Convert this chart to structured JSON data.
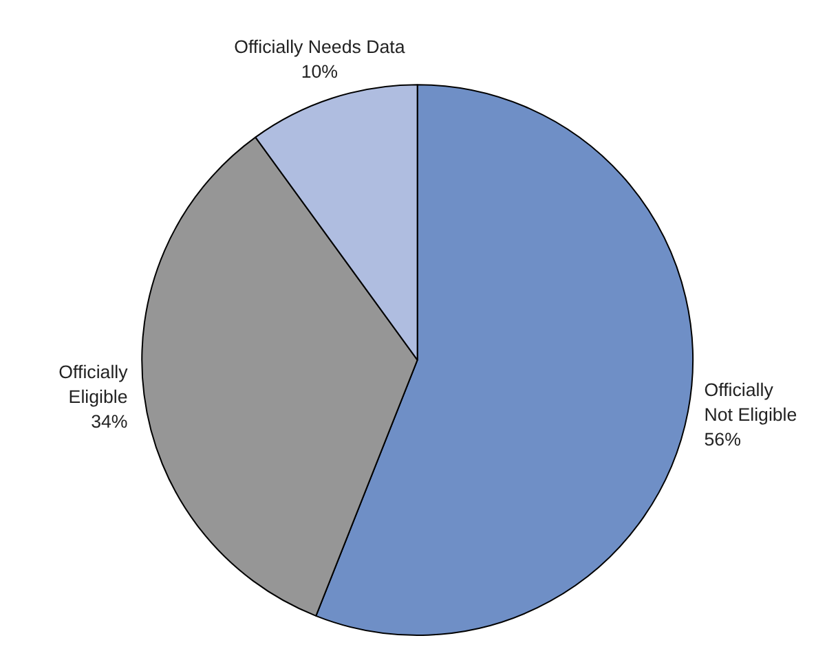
{
  "chart_data": {
    "type": "pie",
    "categories": [
      "Officially\nNot Eligible",
      "Officially\nEligible",
      "Officially Needs Data"
    ],
    "values": [
      56,
      34,
      10
    ],
    "value_labels": [
      "56%",
      "34%",
      "10%"
    ],
    "colors": [
      "#6f8fc6",
      "#969696",
      "#afbde0"
    ]
  }
}
